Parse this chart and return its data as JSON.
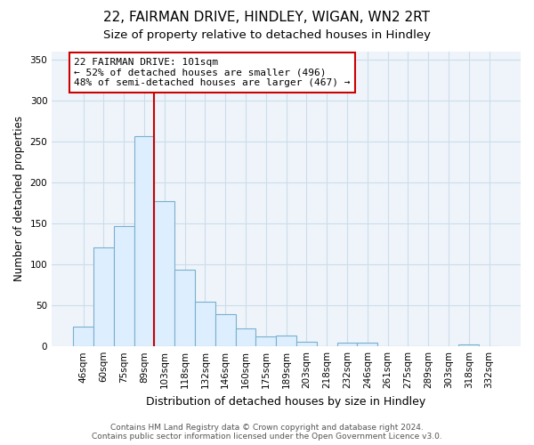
{
  "title": "22, FAIRMAN DRIVE, HINDLEY, WIGAN, WN2 2RT",
  "subtitle": "Size of property relative to detached houses in Hindley",
  "xlabel": "Distribution of detached houses by size in Hindley",
  "ylabel": "Number of detached properties",
  "bar_labels": [
    "46sqm",
    "60sqm",
    "75sqm",
    "89sqm",
    "103sqm",
    "118sqm",
    "132sqm",
    "146sqm",
    "160sqm",
    "175sqm",
    "189sqm",
    "203sqm",
    "218sqm",
    "232sqm",
    "246sqm",
    "261sqm",
    "275sqm",
    "289sqm",
    "303sqm",
    "318sqm",
    "332sqm"
  ],
  "bar_values": [
    24,
    121,
    147,
    256,
    177,
    94,
    54,
    39,
    22,
    12,
    13,
    6,
    0,
    5,
    4,
    0,
    0,
    0,
    0,
    2,
    0
  ],
  "bar_color": "#ddeeff",
  "bar_edge_color": "#7ab0cc",
  "vline_color": "#cc0000",
  "annotation_text": "22 FAIRMAN DRIVE: 101sqm\n← 52% of detached houses are smaller (496)\n48% of semi-detached houses are larger (467) →",
  "annotation_box_color": "#ffffff",
  "annotation_box_edge": "#cc0000",
  "grid_color": "#ccdde8",
  "ylim": [
    0,
    360
  ],
  "yticks": [
    0,
    50,
    100,
    150,
    200,
    250,
    300,
    350
  ],
  "footnote": "Contains HM Land Registry data © Crown copyright and database right 2024.\nContains public sector information licensed under the Open Government Licence v3.0.",
  "title_fontsize": 11,
  "subtitle_fontsize": 9.5,
  "xlabel_fontsize": 9,
  "ylabel_fontsize": 8.5,
  "tick_fontsize": 7.5,
  "annotation_fontsize": 8,
  "footnote_fontsize": 6.5,
  "vline_index": 3.5
}
